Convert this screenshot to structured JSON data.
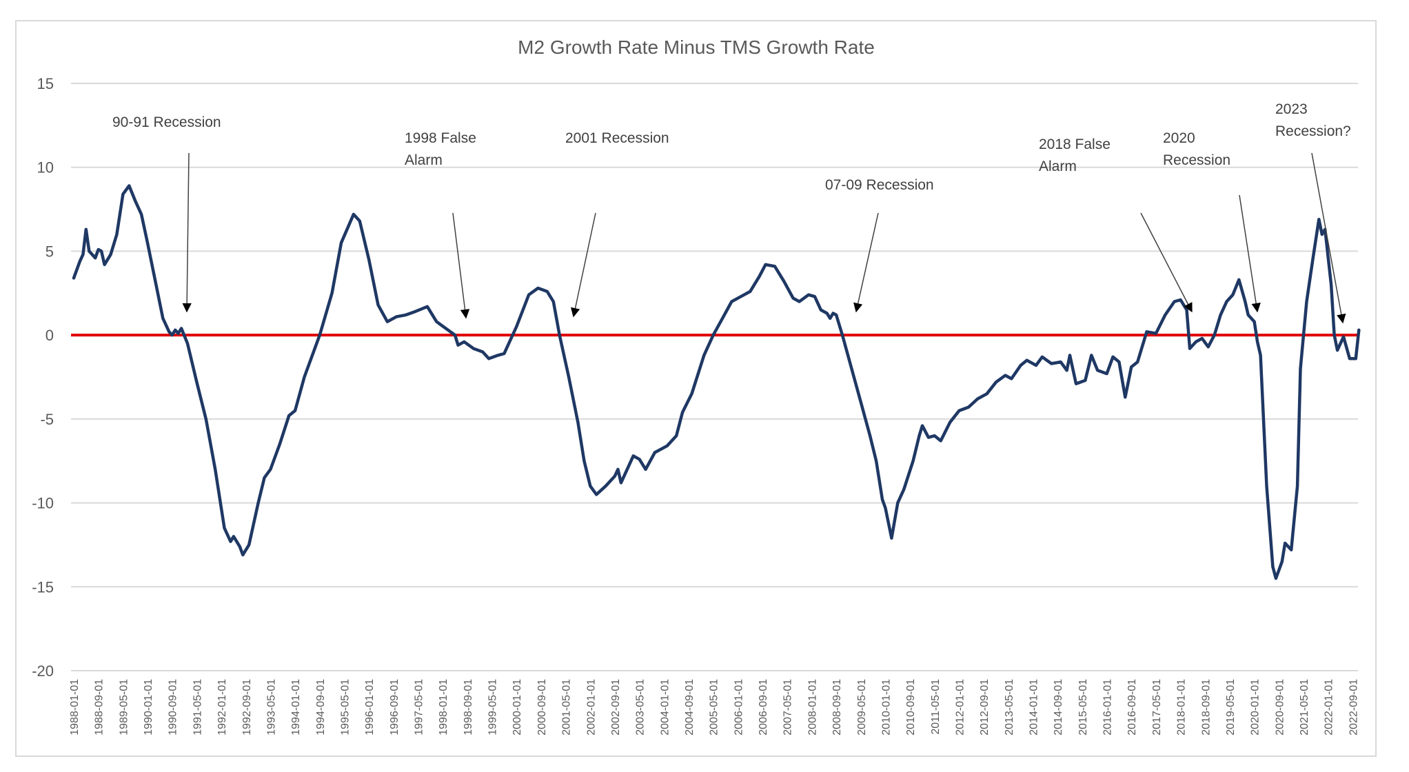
{
  "chart_data": {
    "type": "line",
    "title": "M2 Growth Rate Minus TMS Growth Rate",
    "xlabel": "",
    "ylabel": "",
    "ylim": [
      -20,
      15
    ],
    "yticks": [
      15,
      10,
      5,
      0,
      -5,
      -10,
      -15,
      -20
    ],
    "grid": true,
    "legend": "none",
    "x_start": "1988-01",
    "x_end": "2022-11",
    "xtick_labels": [
      "1988-01-01",
      "1988-09-01",
      "1989-05-01",
      "1990-01-01",
      "1990-09-01",
      "1991-05-01",
      "1992-01-01",
      "1992-09-01",
      "1993-05-01",
      "1994-01-01",
      "1994-09-01",
      "1995-05-01",
      "1996-01-01",
      "1996-09-01",
      "1997-05-01",
      "1998-01-01",
      "1998-09-01",
      "1999-05-01",
      "2000-01-01",
      "2000-09-01",
      "2001-05-01",
      "2002-01-01",
      "2002-09-01",
      "2003-05-01",
      "2004-01-01",
      "2004-09-01",
      "2005-05-01",
      "2006-01-01",
      "2006-09-01",
      "2007-05-01",
      "2008-01-01",
      "2008-09-01",
      "2009-05-01",
      "2010-01-01",
      "2010-09-01",
      "2011-05-01",
      "2012-01-01",
      "2012-09-01",
      "2013-05-01",
      "2014-01-01",
      "2014-09-01",
      "2015-05-01",
      "2016-01-01",
      "2016-09-01",
      "2017-05-01",
      "2018-01-01",
      "2018-09-01",
      "2019-05-01",
      "2020-01-01",
      "2020-09-01",
      "2021-05-01",
      "2022-01-01",
      "2022-09-01"
    ],
    "reference_line": {
      "name": "Zero line",
      "value": 0,
      "color": "#e00000"
    },
    "series": [
      {
        "name": "M2 Growth Rate Minus TMS Growth Rate",
        "color": "#1f3864",
        "points": [
          [
            "1988-01",
            3.4
          ],
          [
            "1988-03",
            4.4
          ],
          [
            "1988-04",
            4.8
          ],
          [
            "1988-05",
            6.3
          ],
          [
            "1988-06",
            5.0
          ],
          [
            "1988-08",
            4.6
          ],
          [
            "1988-09",
            5.1
          ],
          [
            "1988-10",
            5.0
          ],
          [
            "1988-11",
            4.2
          ],
          [
            "1989-01",
            4.8
          ],
          [
            "1989-03",
            6.0
          ],
          [
            "1989-05",
            8.4
          ],
          [
            "1989-07",
            8.9
          ],
          [
            "1989-09",
            8.0
          ],
          [
            "1989-11",
            7.2
          ],
          [
            "1990-01",
            5.5
          ],
          [
            "1990-04",
            2.8
          ],
          [
            "1990-06",
            1.0
          ],
          [
            "1990-08",
            0.2
          ],
          [
            "1990-09",
            0.0
          ],
          [
            "1990-10",
            0.3
          ],
          [
            "1990-11",
            0.1
          ],
          [
            "1990-12",
            0.4
          ],
          [
            "1991-02",
            -0.5
          ],
          [
            "1991-05",
            -2.8
          ],
          [
            "1991-08",
            -5.0
          ],
          [
            "1991-11",
            -8.0
          ],
          [
            "1992-02",
            -11.5
          ],
          [
            "1992-04",
            -12.3
          ],
          [
            "1992-05",
            -12.0
          ],
          [
            "1992-07",
            -12.6
          ],
          [
            "1992-08",
            -13.1
          ],
          [
            "1992-10",
            -12.5
          ],
          [
            "1993-01",
            -10.0
          ],
          [
            "1993-03",
            -8.5
          ],
          [
            "1993-05",
            -8.0
          ],
          [
            "1993-08",
            -6.5
          ],
          [
            "1993-11",
            -4.8
          ],
          [
            "1994-01",
            -4.5
          ],
          [
            "1994-04",
            -2.5
          ],
          [
            "1994-09",
            0.0
          ],
          [
            "1995-01",
            2.5
          ],
          [
            "1995-04",
            5.5
          ],
          [
            "1995-08",
            7.2
          ],
          [
            "1995-10",
            6.8
          ],
          [
            "1996-01",
            4.5
          ],
          [
            "1996-04",
            1.8
          ],
          [
            "1996-07",
            0.8
          ],
          [
            "1996-10",
            1.1
          ],
          [
            "1997-01",
            1.2
          ],
          [
            "1997-04",
            1.4
          ],
          [
            "1997-08",
            1.7
          ],
          [
            "1997-11",
            0.8
          ],
          [
            "1998-02",
            0.4
          ],
          [
            "1998-05",
            0.0
          ],
          [
            "1998-06",
            -0.6
          ],
          [
            "1998-08",
            -0.4
          ],
          [
            "1998-11",
            -0.8
          ],
          [
            "1999-02",
            -1.0
          ],
          [
            "1999-04",
            -1.4
          ],
          [
            "1999-07",
            -1.2
          ],
          [
            "1999-09",
            -1.1
          ],
          [
            "2000-01",
            0.5
          ],
          [
            "2000-05",
            2.4
          ],
          [
            "2000-08",
            2.8
          ],
          [
            "2000-11",
            2.6
          ],
          [
            "2001-01",
            2.0
          ],
          [
            "2001-03",
            0.0
          ],
          [
            "2001-06",
            -2.5
          ],
          [
            "2001-09",
            -5.2
          ],
          [
            "2001-11",
            -7.5
          ],
          [
            "2002-01",
            -9.0
          ],
          [
            "2002-03",
            -9.5
          ],
          [
            "2002-06",
            -9.0
          ],
          [
            "2002-09",
            -8.4
          ],
          [
            "2002-10",
            -8.0
          ],
          [
            "2002-11",
            -8.8
          ],
          [
            "2003-01",
            -8.0
          ],
          [
            "2003-03",
            -7.2
          ],
          [
            "2003-05",
            -7.4
          ],
          [
            "2003-07",
            -8.0
          ],
          [
            "2003-10",
            -7.0
          ],
          [
            "2004-02",
            -6.6
          ],
          [
            "2004-05",
            -6.0
          ],
          [
            "2004-07",
            -4.6
          ],
          [
            "2004-10",
            -3.5
          ],
          [
            "2005-02",
            -1.2
          ],
          [
            "2005-05",
            0.0
          ],
          [
            "2005-08",
            1.0
          ],
          [
            "2005-11",
            2.0
          ],
          [
            "2006-02",
            2.3
          ],
          [
            "2006-05",
            2.6
          ],
          [
            "2006-08",
            3.5
          ],
          [
            "2006-10",
            4.2
          ],
          [
            "2007-01",
            4.1
          ],
          [
            "2007-04",
            3.2
          ],
          [
            "2007-07",
            2.2
          ],
          [
            "2007-09",
            2.0
          ],
          [
            "2007-12",
            2.4
          ],
          [
            "2008-02",
            2.3
          ],
          [
            "2008-04",
            1.5
          ],
          [
            "2008-06",
            1.3
          ],
          [
            "2008-07",
            1.0
          ],
          [
            "2008-08",
            1.3
          ],
          [
            "2008-09",
            1.2
          ],
          [
            "2008-11",
            0.0
          ],
          [
            "2009-02",
            -2.0
          ],
          [
            "2009-05",
            -4.0
          ],
          [
            "2009-08",
            -6.0
          ],
          [
            "2009-10",
            -7.5
          ],
          [
            "2009-12",
            -9.8
          ],
          [
            "2010-01",
            -10.3
          ],
          [
            "2010-03",
            -12.1
          ],
          [
            "2010-05",
            -10.0
          ],
          [
            "2010-07",
            -9.2
          ],
          [
            "2010-10",
            -7.5
          ],
          [
            "2010-12",
            -6.0
          ],
          [
            "2011-01",
            -5.4
          ],
          [
            "2011-03",
            -6.1
          ],
          [
            "2011-05",
            -6.0
          ],
          [
            "2011-07",
            -6.3
          ],
          [
            "2011-10",
            -5.2
          ],
          [
            "2012-01",
            -4.5
          ],
          [
            "2012-04",
            -4.3
          ],
          [
            "2012-07",
            -3.8
          ],
          [
            "2012-10",
            -3.5
          ],
          [
            "2013-01",
            -2.8
          ],
          [
            "2013-04",
            -2.4
          ],
          [
            "2013-06",
            -2.6
          ],
          [
            "2013-09",
            -1.8
          ],
          [
            "2013-11",
            -1.5
          ],
          [
            "2014-02",
            -1.8
          ],
          [
            "2014-04",
            -1.3
          ],
          [
            "2014-07",
            -1.7
          ],
          [
            "2014-10",
            -1.6
          ],
          [
            "2014-12",
            -2.1
          ],
          [
            "2015-01",
            -1.2
          ],
          [
            "2015-03",
            -2.9
          ],
          [
            "2015-06",
            -2.7
          ],
          [
            "2015-08",
            -1.2
          ],
          [
            "2015-10",
            -2.1
          ],
          [
            "2016-01",
            -2.3
          ],
          [
            "2016-03",
            -1.3
          ],
          [
            "2016-05",
            -1.6
          ],
          [
            "2016-07",
            -3.7
          ],
          [
            "2016-09",
            -1.9
          ],
          [
            "2016-11",
            -1.6
          ],
          [
            "2017-02",
            0.2
          ],
          [
            "2017-05",
            0.1
          ],
          [
            "2017-08",
            1.2
          ],
          [
            "2017-11",
            2.0
          ],
          [
            "2018-01",
            2.1
          ],
          [
            "2018-03",
            1.5
          ],
          [
            "2018-04",
            -0.8
          ],
          [
            "2018-06",
            -0.4
          ],
          [
            "2018-08",
            -0.2
          ],
          [
            "2018-10",
            -0.7
          ],
          [
            "2018-12",
            0.0
          ],
          [
            "2019-02",
            1.2
          ],
          [
            "2019-04",
            2.0
          ],
          [
            "2019-06",
            2.4
          ],
          [
            "2019-08",
            3.3
          ],
          [
            "2019-10",
            2.0
          ],
          [
            "2019-11",
            1.2
          ],
          [
            "2020-01",
            0.8
          ],
          [
            "2020-02",
            -0.4
          ],
          [
            "2020-03",
            -1.2
          ],
          [
            "2020-05",
            -9.0
          ],
          [
            "2020-07",
            -13.8
          ],
          [
            "2020-08",
            -14.5
          ],
          [
            "2020-10",
            -13.5
          ],
          [
            "2020-11",
            -12.4
          ],
          [
            "2021-01",
            -12.8
          ],
          [
            "2021-03",
            -9.0
          ],
          [
            "2021-04",
            -2.0
          ],
          [
            "2021-06",
            2.0
          ],
          [
            "2021-08",
            4.5
          ],
          [
            "2021-10",
            6.9
          ],
          [
            "2021-11",
            6.0
          ],
          [
            "2021-12",
            6.3
          ],
          [
            "2022-02",
            3.0
          ],
          [
            "2022-03",
            0.0
          ],
          [
            "2022-04",
            -0.9
          ],
          [
            "2022-06",
            -0.1
          ],
          [
            "2022-08",
            -1.4
          ],
          [
            "2022-10",
            -1.4
          ],
          [
            "2022-11",
            0.3
          ]
        ]
      }
    ],
    "annotations": [
      {
        "lines": [
          "90-91 Recession"
        ],
        "target": "1990-10"
      },
      {
        "lines": [
          "1998 False",
          "Alarm"
        ],
        "target": "1998-06"
      },
      {
        "lines": [
          "2001 Recession"
        ],
        "target": "2001-03"
      },
      {
        "lines": [
          "07-09 Recession"
        ],
        "target": "2008-11"
      },
      {
        "lines": [
          "2018 False",
          "Alarm"
        ],
        "target": "2018-03"
      },
      {
        "lines": [
          "2020",
          "Recession"
        ],
        "target": "2020-01"
      },
      {
        "lines": [
          "2023",
          "Recession?"
        ],
        "target": "2022-04"
      }
    ]
  }
}
